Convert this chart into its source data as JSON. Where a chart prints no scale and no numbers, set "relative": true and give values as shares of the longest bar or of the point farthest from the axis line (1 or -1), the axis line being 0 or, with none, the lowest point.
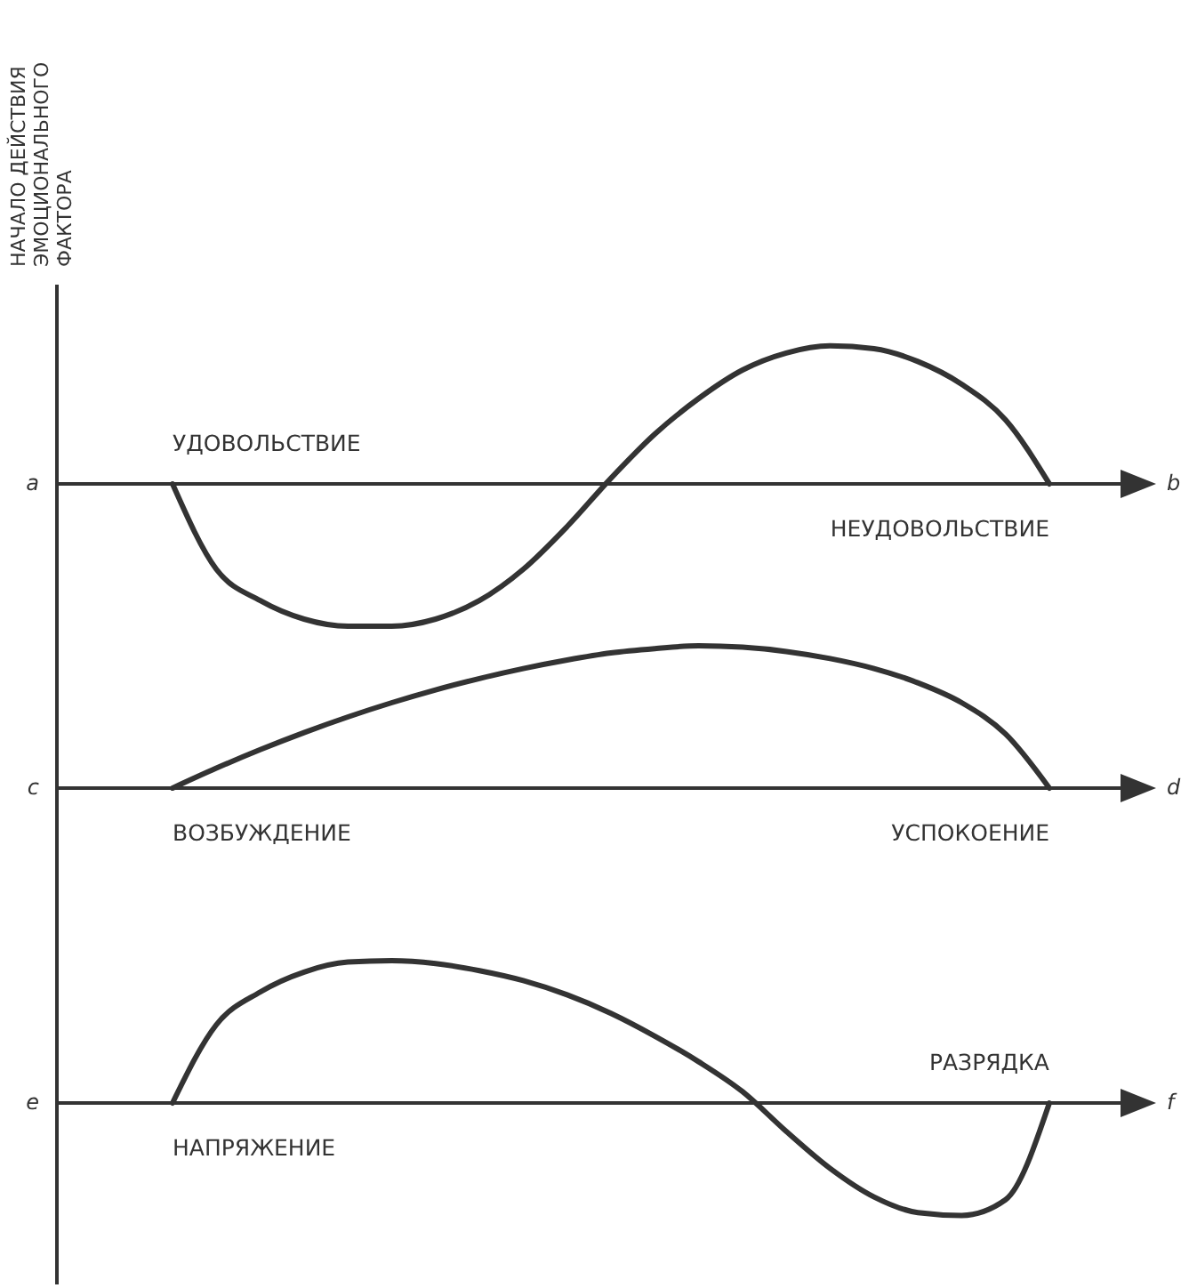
{
  "chart_data": [
    {
      "type": "line",
      "title": "НАЧАЛО ДЕЙСТВИЯ\nЭМОЦИОНАЛЬНОГО\nФАКТОРА",
      "relative": true,
      "ylabel": "a",
      "xlabel": "b",
      "categories": [
        null,
        null,
        null,
        null,
        null,
        null,
        null,
        null,
        null,
        null,
        null,
        null,
        null,
        null,
        null,
        null,
        null,
        null,
        null,
        null,
        null
      ],
      "series": [
        {
          "color": "#333333",
          "values": [
            0,
            -0.6,
            -0.82,
            -0.95,
            -1,
            -1,
            -0.95,
            -0.82,
            -0.6,
            -0.3,
            0.04,
            0.35,
            0.6,
            0.8,
            0.92,
            0.97,
            0.95,
            0.86,
            0.7,
            0.45,
            0
          ]
        }
      ],
      "annotations": [
        "УДОВОЛЬСТВИЕ",
        "НЕУДОВОЛЬСТВИЕ"
      ]
    },
    {
      "type": "line",
      "relative": true,
      "ylabel": "c",
      "xlabel": "d",
      "categories": [
        null,
        null,
        null,
        null,
        null,
        null,
        null,
        null,
        null,
        null,
        null,
        null,
        null,
        null,
        null,
        null,
        null,
        null,
        null,
        null,
        null
      ],
      "series": [
        {
          "color": "#333333",
          "values": [
            0,
            0.14,
            0.27,
            0.39,
            0.5,
            0.6,
            0.69,
            0.77,
            0.84,
            0.9,
            0.95,
            0.98,
            1,
            0.99,
            0.96,
            0.91,
            0.84,
            0.74,
            0.6,
            0.38,
            0
          ]
        }
      ],
      "annotations": [
        "ВОЗБУЖДЕНИЕ",
        "УСПОКОЕНИЕ"
      ]
    },
    {
      "type": "line",
      "relative": true,
      "ylabel": "e",
      "xlabel": "f",
      "categories": [
        null,
        null,
        null,
        null,
        null,
        null,
        null,
        null,
        null,
        null,
        null,
        null,
        null,
        null,
        null,
        null,
        null,
        null,
        null,
        null,
        null
      ],
      "series": [
        {
          "color": "#333333",
          "values": [
            0,
            0.55,
            0.78,
            0.92,
            0.99,
            1,
            0.98,
            0.93,
            0.86,
            0.76,
            0.63,
            0.47,
            0.29,
            0.08,
            -0.2,
            -0.46,
            -0.66,
            -0.77,
            -0.79,
            -0.68,
            0
          ]
        }
      ],
      "annotations": [
        "НАПРЯЖЕНИЕ",
        "РАЗРЯДКА"
      ]
    }
  ]
}
